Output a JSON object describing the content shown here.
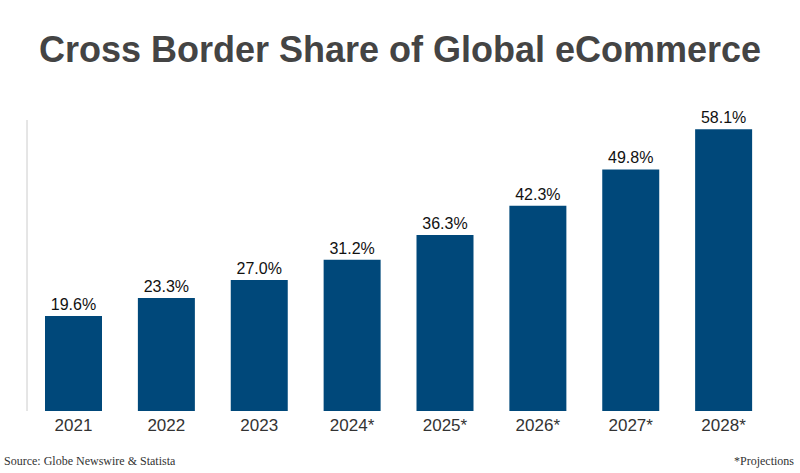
{
  "chart_data": {
    "type": "bar",
    "title": "Cross Border Share of Global eCommerce",
    "categories": [
      "2021",
      "2022",
      "2023",
      "2024*",
      "2025*",
      "2026*",
      "2027*",
      "2028*"
    ],
    "values": [
      19.6,
      23.3,
      27.0,
      31.2,
      36.3,
      42.3,
      49.8,
      58.1
    ],
    "value_labels": [
      "19.6%",
      "23.3%",
      "27.0%",
      "31.2%",
      "36.3%",
      "42.3%",
      "49.8%",
      "58.1%"
    ],
    "color": "#00487a",
    "ylim": [
      0,
      60
    ],
    "data_labels": true,
    "tick_labels": "x",
    "grid": false,
    "source": "Source: Globe Newswire & Statista",
    "note": "*Projections"
  }
}
